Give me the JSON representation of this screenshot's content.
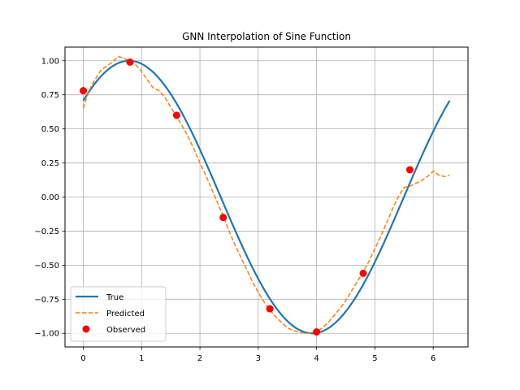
{
  "chart_data": {
    "type": "line",
    "title": "GNN Interpolation of Sine Function",
    "xlabel": "",
    "ylabel": "",
    "xlim": [
      -0.314,
      6.597
    ],
    "ylim": [
      -1.1,
      1.1
    ],
    "xticks": [
      0,
      1,
      2,
      3,
      4,
      5,
      6
    ],
    "xtick_labels": [
      "0",
      "1",
      "2",
      "3",
      "4",
      "5",
      "6"
    ],
    "yticks": [
      -1.0,
      -0.75,
      -0.5,
      -0.25,
      0.0,
      0.25,
      0.5,
      0.75,
      1.0
    ],
    "ytick_labels": [
      "−1.00",
      "−0.75",
      "−0.50",
      "−0.25",
      "0.00",
      "0.25",
      "0.50",
      "0.75",
      "1.00"
    ],
    "grid": true,
    "legend_position": "lower-left",
    "series": [
      {
        "name": "True",
        "style": "solid",
        "color": "#1f77b4",
        "function": "sin(x + pi/4)",
        "x_range": [
          0,
          6.283
        ]
      },
      {
        "name": "Predicted",
        "style": "dashed",
        "color": "#ff7f0e",
        "points": [
          [
            0.0,
            0.65
          ],
          [
            0.05,
            0.72
          ],
          [
            0.12,
            0.8
          ],
          [
            0.2,
            0.86
          ],
          [
            0.3,
            0.93
          ],
          [
            0.4,
            0.96
          ],
          [
            0.5,
            0.99
          ],
          [
            0.6,
            1.03
          ],
          [
            0.7,
            1.02
          ],
          [
            0.8,
            0.99
          ],
          [
            0.9,
            0.97
          ],
          [
            1.0,
            0.92
          ],
          [
            1.1,
            0.86
          ],
          [
            1.2,
            0.8
          ],
          [
            1.3,
            0.78
          ],
          [
            1.4,
            0.73
          ],
          [
            1.5,
            0.66
          ],
          [
            1.6,
            0.59
          ],
          [
            1.7,
            0.52
          ],
          [
            1.8,
            0.44
          ],
          [
            1.9,
            0.35
          ],
          [
            2.0,
            0.25
          ],
          [
            2.1,
            0.16
          ],
          [
            2.2,
            0.06
          ],
          [
            2.3,
            -0.04
          ],
          [
            2.4,
            -0.14
          ],
          [
            2.5,
            -0.25
          ],
          [
            2.6,
            -0.35
          ],
          [
            2.7,
            -0.44
          ],
          [
            2.8,
            -0.53
          ],
          [
            2.9,
            -0.62
          ],
          [
            3.0,
            -0.7
          ],
          [
            3.1,
            -0.77
          ],
          [
            3.2,
            -0.83
          ],
          [
            3.3,
            -0.88
          ],
          [
            3.4,
            -0.92
          ],
          [
            3.5,
            -0.96
          ],
          [
            3.6,
            -0.98
          ],
          [
            3.7,
            -0.99
          ],
          [
            3.8,
            -1.0
          ],
          [
            3.9,
            -1.0
          ],
          [
            4.0,
            -0.99
          ],
          [
            4.1,
            -0.96
          ],
          [
            4.2,
            -0.92
          ],
          [
            4.3,
            -0.87
          ],
          [
            4.4,
            -0.82
          ],
          [
            4.5,
            -0.76
          ],
          [
            4.6,
            -0.69
          ],
          [
            4.7,
            -0.62
          ],
          [
            4.8,
            -0.55
          ],
          [
            4.9,
            -0.47
          ],
          [
            5.0,
            -0.38
          ],
          [
            5.1,
            -0.29
          ],
          [
            5.2,
            -0.19
          ],
          [
            5.3,
            -0.09
          ],
          [
            5.4,
            0.0
          ],
          [
            5.5,
            0.07
          ],
          [
            5.6,
            0.08
          ],
          [
            5.7,
            0.1
          ],
          [
            5.8,
            0.12
          ],
          [
            5.9,
            0.15
          ],
          [
            6.0,
            0.19
          ],
          [
            6.1,
            0.16
          ],
          [
            6.2,
            0.15
          ],
          [
            6.28,
            0.16
          ]
        ]
      },
      {
        "name": "Observed",
        "style": "markers",
        "color": "#ff0000",
        "points": [
          [
            0.0,
            0.78
          ],
          [
            0.8,
            0.99
          ],
          [
            1.6,
            0.6
          ],
          [
            2.4,
            -0.15
          ],
          [
            3.2,
            -0.82
          ],
          [
            4.0,
            -0.99
          ],
          [
            4.8,
            -0.56
          ],
          [
            5.6,
            0.2
          ]
        ]
      }
    ]
  }
}
